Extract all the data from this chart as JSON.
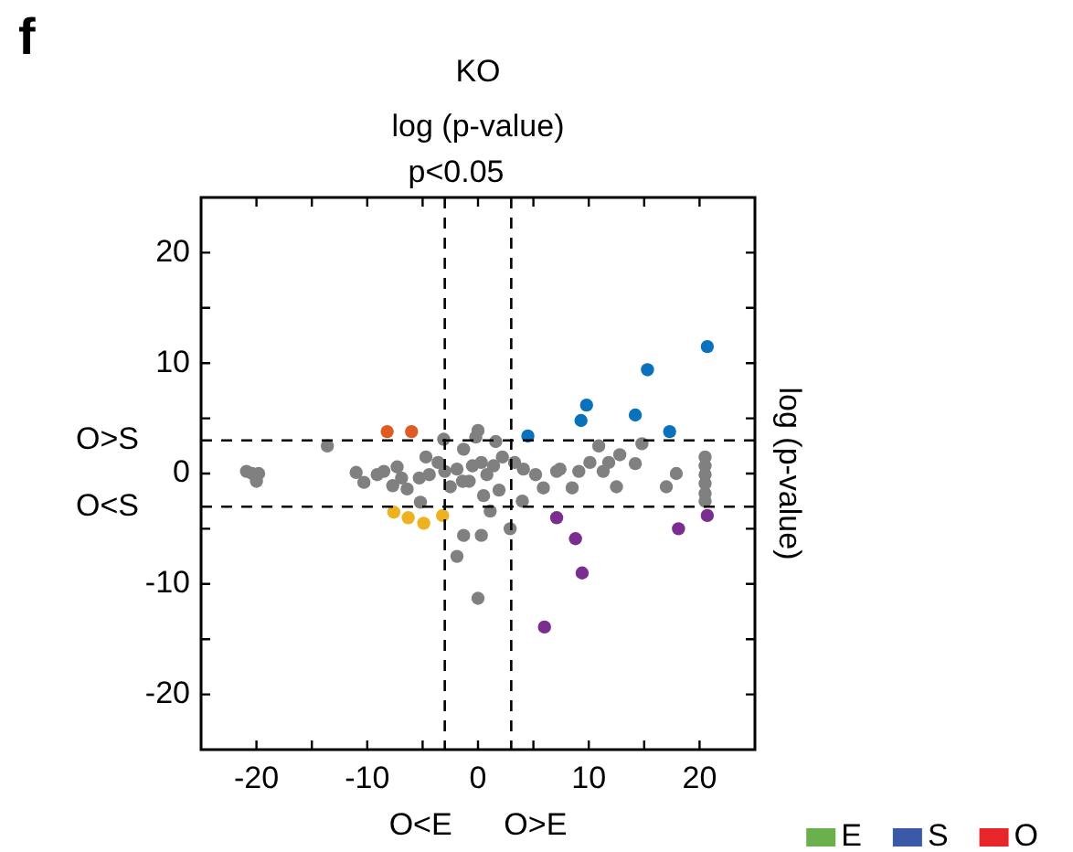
{
  "chart_data": {
    "type": "scatter",
    "title": "KO",
    "subtitle": "log (p-value)",
    "y2label": "log (p-value)",
    "annotations": [
      "f",
      "p<0.05"
    ],
    "xlim": [
      -25,
      25
    ],
    "ylim": [
      -25,
      25
    ],
    "xticks": [
      -20,
      {
        "value": -15,
        "label": null
      },
      -10,
      {
        "value": -5,
        "label": null
      },
      0,
      {
        "value": 5,
        "label": null
      },
      10,
      {
        "value": 15,
        "label": null
      },
      20
    ],
    "yticks": [
      -20,
      {
        "value": -15,
        "label": null
      },
      -10,
      {
        "value": -5,
        "label": null
      },
      0,
      {
        "value": 5,
        "label": null
      },
      10,
      {
        "value": 15,
        "label": null
      },
      20
    ],
    "grid": false,
    "marker": "circle",
    "legend": "bottom right",
    "ref_lines": [
      {
        "axis": "x",
        "value": -3,
        "label": "O<E",
        "line_style": "dashed"
      },
      {
        "axis": "x",
        "value": 3,
        "label": "O>E",
        "line_style": "dashed"
      },
      {
        "axis": "y",
        "value": 3,
        "label": "O>S",
        "line_style": "dashed"
      },
      {
        "axis": "y",
        "value": -3,
        "label": "O<S",
        "line_style": "dashed"
      }
    ],
    "series": [
      {
        "color": "#808080",
        "x": [
          -20.9,
          -20.4,
          -20,
          -19.8,
          -13.6,
          -11,
          -10.3,
          -8.5,
          -7.3,
          -7.7,
          -6.4,
          -5.3,
          -5.2,
          -4.7,
          -4.4,
          -3.1,
          -2.5,
          -1.9,
          -1.3,
          -0.8,
          0,
          -0.2,
          0.3,
          0.8,
          0.5,
          1.1,
          0.3,
          -1.3,
          -1.9,
          0,
          2.9,
          1.6,
          2.2,
          1.9,
          4,
          4.1,
          5.2,
          5.9,
          7.1,
          8.5,
          9.1,
          10.1,
          11.3,
          12.5,
          10.9,
          12.8,
          14.2,
          14.8,
          17,
          17.9,
          20.5,
          20.5,
          20.5,
          20.5,
          20.5,
          20.5,
          3.3,
          1.4,
          -0.5,
          -1.4,
          -3,
          -3.6,
          -9.1,
          -6.9,
          7.4,
          11.8
        ],
        "values": [
          0.2,
          0,
          -0.7,
          0,
          2.5,
          0.1,
          -0.8,
          0.2,
          0.6,
          -1.1,
          -1.4,
          -0.4,
          -2.6,
          1.5,
          -0.1,
          3.1,
          -1.2,
          0.4,
          2.2,
          -0.7,
          3.9,
          3.3,
          1,
          -0.1,
          -2,
          -3.4,
          -5.6,
          -5.6,
          -7.5,
          -11.3,
          -5,
          2.9,
          1.5,
          -1.5,
          -2.5,
          0.4,
          -0.1,
          -1.3,
          0.2,
          -1.3,
          0.2,
          1,
          0.2,
          -1.2,
          2.5,
          1.7,
          0.9,
          2.7,
          -1.2,
          0,
          1.5,
          0.7,
          -0.1,
          -0.9,
          -1.8,
          -2.5,
          1,
          0.7,
          0.7,
          -0.7,
          0.2,
          1,
          -0.1,
          -0.4,
          0.4,
          1
        ]
      },
      {
        "color": "#0a72bd",
        "x": [
          20.7,
          15.3,
          9.8,
          9.3,
          14.2,
          17.3,
          4.5
        ],
        "values": [
          11.5,
          9.4,
          6.2,
          4.8,
          5.3,
          3.8,
          3.4
        ]
      },
      {
        "color": "#e05a23",
        "x": [
          -8.2,
          -6
        ],
        "values": [
          3.8,
          3.8
        ]
      },
      {
        "color": "#eeb120",
        "x": [
          -7.6,
          -6.3,
          -4.9,
          -3.2
        ],
        "values": [
          -3.5,
          -4,
          -4.5,
          -3.8
        ]
      },
      {
        "color": "#7b2e8f",
        "x": [
          7.1,
          8.8,
          9.4,
          6,
          18.1,
          20.7
        ],
        "values": [
          -4,
          -5.9,
          -9,
          -13.9,
          -5,
          -3.8
        ]
      },
      {
        "name": "E",
        "color": "#6ab04c"
      },
      {
        "name": "S",
        "color": "#3a59a8"
      },
      {
        "name": "O",
        "color": "#e8262a"
      }
    ]
  }
}
